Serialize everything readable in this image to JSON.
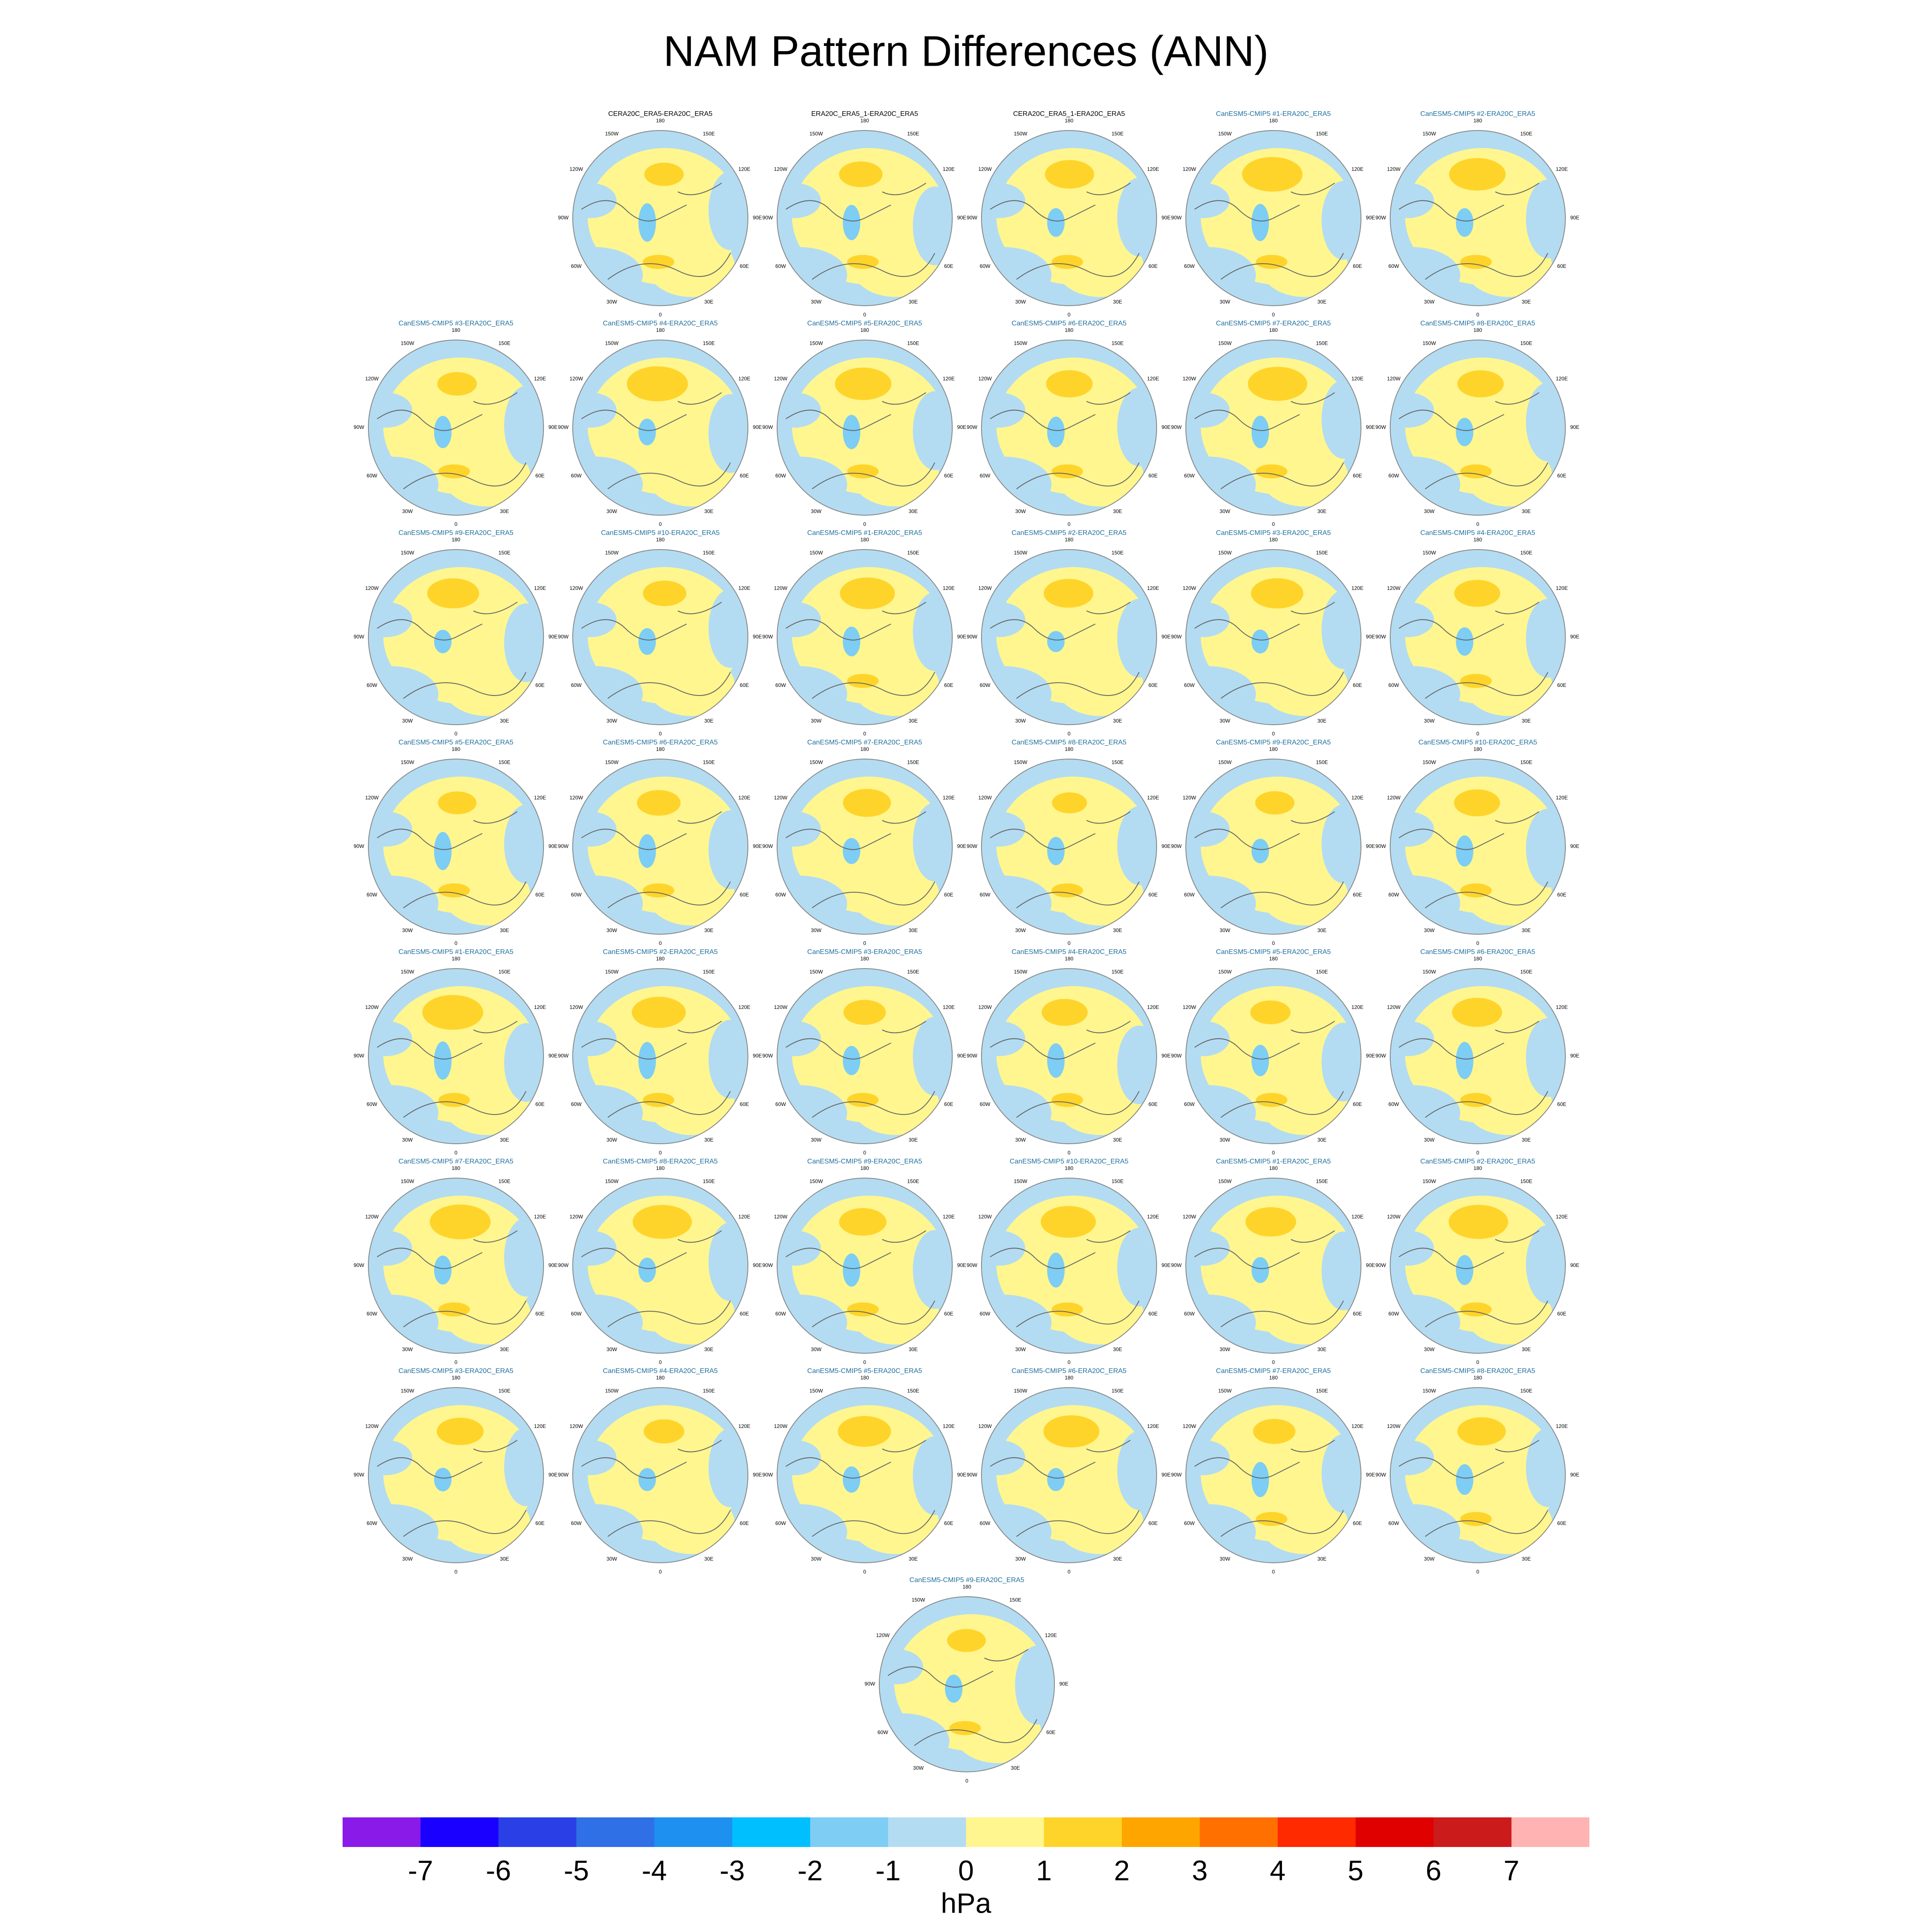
{
  "title": "NAM Pattern Differences (ANN)",
  "lon_labels": [
    "180",
    "150E",
    "120E",
    "90E",
    "60E",
    "30E",
    "0",
    "30W",
    "60W",
    "90W",
    "120W",
    "150W"
  ],
  "panels": [
    {
      "title": "CERA20C_ERA5-ERA20C_ERA5",
      "title_color": "#000000"
    },
    {
      "title": "ERA20C_ERA5_1-ERA20C_ERA5",
      "title_color": "#000000"
    },
    {
      "title": "CERA20C_ERA5_1-ERA20C_ERA5",
      "title_color": "#000000"
    },
    {
      "title": "CanESM5-CMIP5 #1-ERA20C_ERA5",
      "title_color": "#1f6f9f"
    },
    {
      "title": "CanESM5-CMIP5 #2-ERA20C_ERA5",
      "title_color": "#1f6f9f"
    },
    {
      "title": "CanESM5-CMIP5 #3-ERA20C_ERA5",
      "title_color": "#1f6f9f"
    },
    {
      "title": "CanESM5-CMIP5 #4-ERA20C_ERA5",
      "title_color": "#1f6f9f"
    },
    {
      "title": "CanESM5-CMIP5 #5-ERA20C_ERA5",
      "title_color": "#1f6f9f"
    },
    {
      "title": "CanESM5-CMIP5 #6-ERA20C_ERA5",
      "title_color": "#1f6f9f"
    },
    {
      "title": "CanESM5-CMIP5 #7-ERA20C_ERA5",
      "title_color": "#1f6f9f"
    },
    {
      "title": "CanESM5-CMIP5 #8-ERA20C_ERA5",
      "title_color": "#1f6f9f"
    },
    {
      "title": "CanESM5-CMIP5 #9-ERA20C_ERA5",
      "title_color": "#1f6f9f"
    },
    {
      "title": "CanESM5-CMIP5 #10-ERA20C_ERA5",
      "title_color": "#1f6f9f"
    },
    {
      "title": "CanESM5-CMIP5 #1-ERA20C_ERA5",
      "title_color": "#1f6f9f"
    },
    {
      "title": "CanESM5-CMIP5 #2-ERA20C_ERA5",
      "title_color": "#1f6f9f"
    },
    {
      "title": "CanESM5-CMIP5 #3-ERA20C_ERA5",
      "title_color": "#1f6f9f"
    },
    {
      "title": "CanESM5-CMIP5 #4-ERA20C_ERA5",
      "title_color": "#1f6f9f"
    },
    {
      "title": "CanESM5-CMIP5 #5-ERA20C_ERA5",
      "title_color": "#1f6f9f"
    },
    {
      "title": "CanESM5-CMIP5 #6-ERA20C_ERA5",
      "title_color": "#1f6f9f"
    },
    {
      "title": "CanESM5-CMIP5 #7-ERA20C_ERA5",
      "title_color": "#1f6f9f"
    },
    {
      "title": "CanESM5-CMIP5 #8-ERA20C_ERA5",
      "title_color": "#1f6f9f"
    },
    {
      "title": "CanESM5-CMIP5 #9-ERA20C_ERA5",
      "title_color": "#1f6f9f"
    },
    {
      "title": "CanESM5-CMIP5 #10-ERA20C_ERA5",
      "title_color": "#1f6f9f"
    },
    {
      "title": "CanESM5-CMIP5 #1-ERA20C_ERA5",
      "title_color": "#1f6f9f"
    },
    {
      "title": "CanESM5-CMIP5 #2-ERA20C_ERA5",
      "title_color": "#1f6f9f"
    },
    {
      "title": "CanESM5-CMIP5 #3-ERA20C_ERA5",
      "title_color": "#1f6f9f"
    },
    {
      "title": "CanESM5-CMIP5 #4-ERA20C_ERA5",
      "title_color": "#1f6f9f"
    },
    {
      "title": "CanESM5-CMIP5 #5-ERA20C_ERA5",
      "title_color": "#1f6f9f"
    },
    {
      "title": "CanESM5-CMIP5 #6-ERA20C_ERA5",
      "title_color": "#1f6f9f"
    },
    {
      "title": "CanESM5-CMIP5 #7-ERA20C_ERA5",
      "title_color": "#1f6f9f"
    },
    {
      "title": "CanESM5-CMIP5 #8-ERA20C_ERA5",
      "title_color": "#1f6f9f"
    },
    {
      "title": "CanESM5-CMIP5 #9-ERA20C_ERA5",
      "title_color": "#1f6f9f"
    },
    {
      "title": "CanESM5-CMIP5 #10-ERA20C_ERA5",
      "title_color": "#1f6f9f"
    },
    {
      "title": "CanESM5-CMIP5 #1-ERA20C_ERA5",
      "title_color": "#1f6f9f"
    },
    {
      "title": "CanESM5-CMIP5 #2-ERA20C_ERA5",
      "title_color": "#1f6f9f"
    },
    {
      "title": "CanESM5-CMIP5 #3-ERA20C_ERA5",
      "title_color": "#1f6f9f"
    },
    {
      "title": "CanESM5-CMIP5 #4-ERA20C_ERA5",
      "title_color": "#1f6f9f"
    },
    {
      "title": "CanESM5-CMIP5 #5-ERA20C_ERA5",
      "title_color": "#1f6f9f"
    },
    {
      "title": "CanESM5-CMIP5 #6-ERA20C_ERA5",
      "title_color": "#1f6f9f"
    },
    {
      "title": "CanESM5-CMIP5 #7-ERA20C_ERA5",
      "title_color": "#1f6f9f"
    },
    {
      "title": "CanESM5-CMIP5 #8-ERA20C_ERA5",
      "title_color": "#1f6f9f"
    },
    {
      "title": "CanESM5-CMIP5 #9-ERA20C_ERA5",
      "title_color": "#1f6f9f"
    }
  ],
  "colorbar": {
    "colors": [
      "#8a1ae8",
      "#1a00ff",
      "#2a40e6",
      "#3070e6",
      "#1e90f0",
      "#00bfff",
      "#7dcdf5",
      "#b3dcf2",
      "#fff68f",
      "#ffd42a",
      "#ffa500",
      "#ff7000",
      "#ff2a00",
      "#e00000",
      "#cc1b1b",
      "#ffb3b3"
    ],
    "ticks": [
      -7,
      -6,
      -5,
      -4,
      -3,
      -2,
      -1,
      0,
      1,
      2,
      3,
      4,
      5,
      6,
      7
    ],
    "label": "hPa"
  }
}
